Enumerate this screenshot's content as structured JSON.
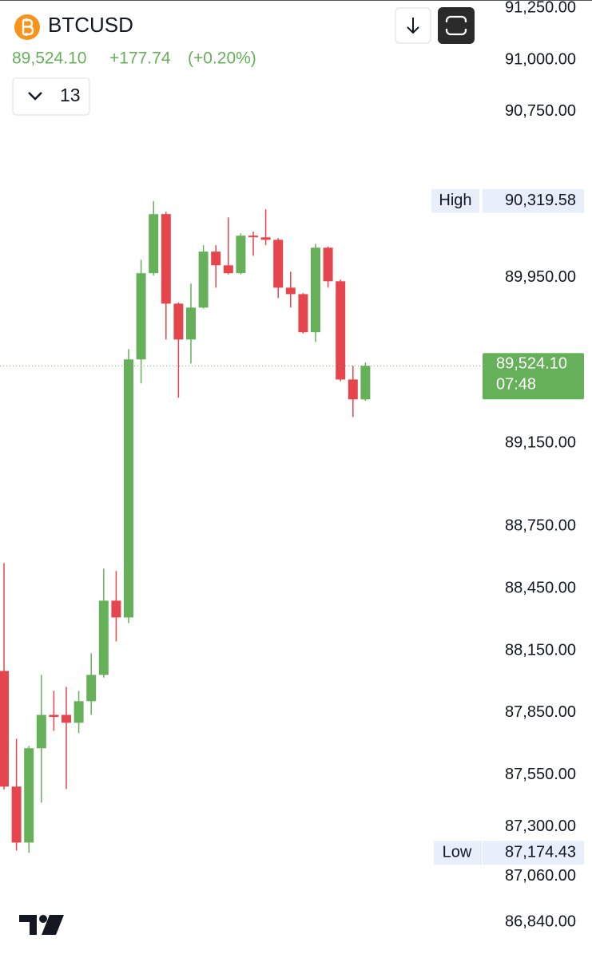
{
  "header": {
    "symbol": "BTCUSD",
    "price": "89,524.10",
    "change": "+177.74",
    "change_pct": "(+0.20%)",
    "interval": "13"
  },
  "chart_data": {
    "type": "candlestick",
    "up_color": "#66b05a",
    "down_color": "#e5454c",
    "ylim": [
      86667,
      91289
    ],
    "yticks": [
      {
        "value": 91250,
        "label": "91,250.00"
      },
      {
        "value": 91000,
        "label": "91,000.00"
      },
      {
        "value": 90750,
        "label": "90,750.00"
      },
      {
        "value": 89950,
        "label": "89,950.00"
      },
      {
        "value": 89150,
        "label": "89,150.00"
      },
      {
        "value": 88750,
        "label": "88,750.00"
      },
      {
        "value": 88450,
        "label": "88,450.00"
      },
      {
        "value": 88150,
        "label": "88,150.00"
      },
      {
        "value": 87850,
        "label": "87,850.00"
      },
      {
        "value": 87550,
        "label": "87,550.00"
      },
      {
        "value": 87300,
        "label": "87,300.00"
      },
      {
        "value": 87060,
        "label": "87,060.00"
      },
      {
        "value": 86840,
        "label": "86,840.00"
      }
    ],
    "open": [
      88052,
      87494,
      87224,
      87679,
      87840,
      87840,
      87802,
      87906,
      88033,
      88391,
      88310,
      89555,
      89971,
      90256,
      89824,
      89651,
      89805,
      90075,
      90009,
      89971,
      90152,
      90144,
      90132,
      89901,
      89870,
      89686,
      90094,
      89932,
      89458,
      89362
    ],
    "high": [
      88572,
      87725,
      87690,
      88033,
      87956,
      87975,
      87956,
      88137,
      88545,
      88534,
      89605,
      90036,
      90319.58,
      90267,
      89830,
      89921,
      90106,
      90106,
      90240,
      90163,
      90171,
      90279,
      90140,
      89978,
      89875,
      90113,
      90100,
      89940,
      89524,
      89540
    ],
    "low": [
      87480,
      87186,
      87174.43,
      87417,
      87763,
      87482,
      87752,
      87840,
      88020,
      88195,
      88283,
      89439,
      89960,
      89651,
      89370,
      89535,
      89800,
      89901,
      89965,
      89965,
      90055,
      90106,
      89851,
      89805,
      89680,
      89639,
      89901,
      89450,
      89277,
      89355
    ],
    "close": [
      87494,
      87224,
      87679,
      87840,
      87830,
      87802,
      87906,
      88033,
      88391,
      88310,
      89555,
      89971,
      90256,
      89824,
      89651,
      89805,
      90075,
      90009,
      89971,
      90152,
      90150,
      90132,
      89901,
      89870,
      89686,
      90094,
      89932,
      89458,
      89362,
      89524.1
    ],
    "high_marker": {
      "name": "High",
      "value": 90319.58,
      "label": "90,319.58"
    },
    "low_marker": {
      "name": "Low",
      "value": 87174.43,
      "label": "87,174.43"
    },
    "last_price": {
      "value": 89524.1,
      "label": "89,524.10",
      "countdown": "07:48"
    }
  }
}
